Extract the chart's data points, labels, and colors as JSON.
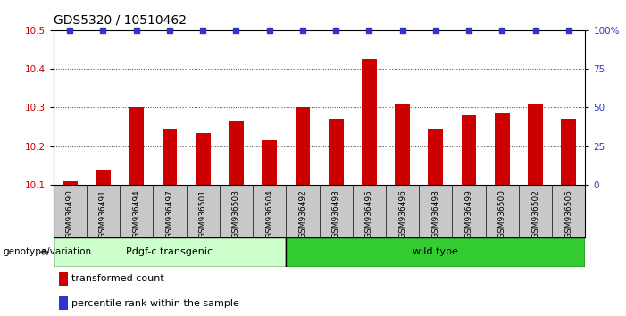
{
  "title": "GDS5320 / 10510462",
  "categories": [
    "GSM936490",
    "GSM936491",
    "GSM936494",
    "GSM936497",
    "GSM936501",
    "GSM936503",
    "GSM936504",
    "GSM936492",
    "GSM936493",
    "GSM936495",
    "GSM936496",
    "GSM936498",
    "GSM936499",
    "GSM936500",
    "GSM936502",
    "GSM936505"
  ],
  "bar_values": [
    10.11,
    10.14,
    10.3,
    10.245,
    10.235,
    10.265,
    10.215,
    10.3,
    10.27,
    10.425,
    10.31,
    10.245,
    10.28,
    10.285,
    10.31,
    10.27
  ],
  "percentile_values": [
    100,
    100,
    100,
    100,
    100,
    100,
    100,
    100,
    100,
    100,
    100,
    100,
    100,
    100,
    100,
    100
  ],
  "ylim_left": [
    10.1,
    10.5
  ],
  "ylim_right": [
    0,
    100
  ],
  "yticks_left": [
    10.1,
    10.2,
    10.3,
    10.4,
    10.5
  ],
  "yticks_right": [
    0,
    25,
    50,
    75,
    100
  ],
  "ytick_labels_right": [
    "0",
    "25",
    "50",
    "75",
    "100%"
  ],
  "bar_color": "#cc0000",
  "dot_color": "#3333cc",
  "group1_label": "Pdgf-c transgenic",
  "group2_label": "wild type",
  "group1_color": "#ccffcc",
  "group2_color": "#33cc33",
  "group1_count": 7,
  "genotype_label": "genotype/variation",
  "legend_bar_label": "transformed count",
  "legend_dot_label": "percentile rank within the sample",
  "bg_color": "#c8c8c8",
  "plot_bg_color": "#ffffff",
  "dotted_line_color": "#444444",
  "title_fontsize": 10,
  "tick_fontsize": 7.5,
  "label_fontsize": 8
}
